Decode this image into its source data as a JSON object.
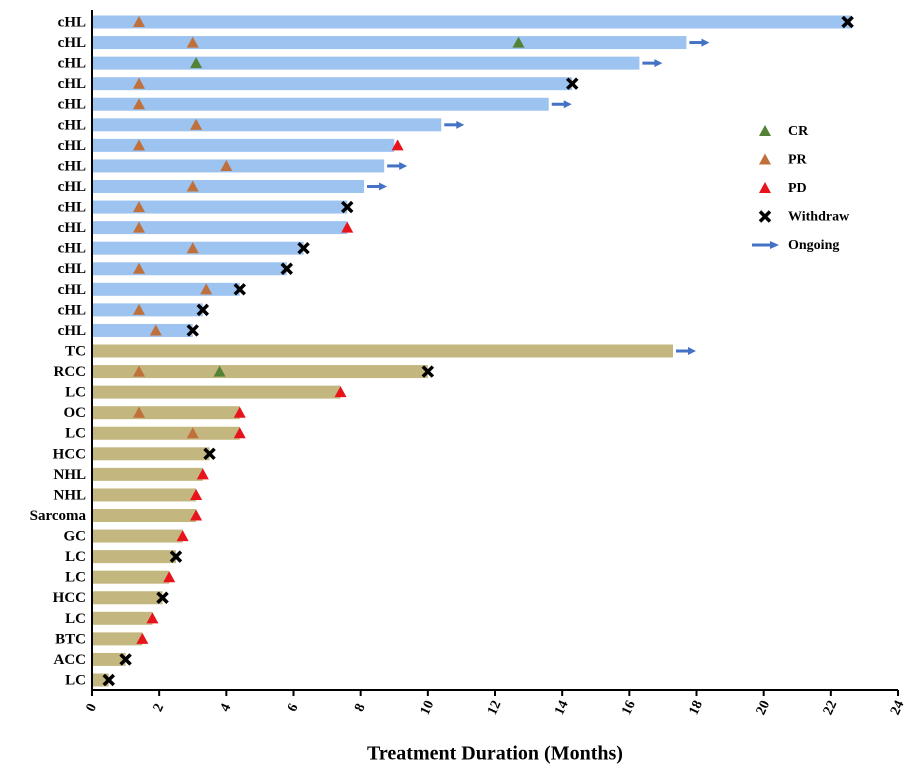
{
  "chart_data": {
    "type": "swimmer",
    "x_label": "Treatment Duration (Months)",
    "xlim": [
      0,
      24
    ],
    "xticks": [
      0,
      2,
      4,
      6,
      8,
      10,
      12,
      14,
      16,
      18,
      20,
      22,
      24
    ],
    "categories": [
      "cHL",
      "cHL",
      "cHL",
      "cHL",
      "cHL",
      "cHL",
      "cHL",
      "cHL",
      "cHL",
      "cHL",
      "cHL",
      "cHL",
      "cHL",
      "cHL",
      "cHL",
      "cHL",
      "TC",
      "RCC",
      "LC",
      "OC",
      "LC",
      "HCC",
      "NHL",
      "NHL",
      "Sarcoma",
      "GC",
      "LC",
      "LC",
      "HCC",
      "LC",
      "BTC",
      "ACC",
      "LC"
    ],
    "values": [
      22.6,
      17.7,
      16.3,
      14.3,
      13.6,
      10.4,
      9.0,
      8.7,
      8.1,
      7.6,
      7.6,
      6.3,
      5.8,
      4.4,
      3.3,
      3.0,
      17.3,
      10.0,
      7.4,
      4.4,
      4.4,
      3.5,
      3.3,
      3.1,
      3.1,
      2.7,
      2.5,
      2.3,
      2.1,
      1.8,
      1.5,
      1.0,
      0.5
    ],
    "bar_colors": [
      "#9dc3f0",
      "#9dc3f0",
      "#9dc3f0",
      "#9dc3f0",
      "#9dc3f0",
      "#9dc3f0",
      "#9dc3f0",
      "#9dc3f0",
      "#9dc3f0",
      "#9dc3f0",
      "#9dc3f0",
      "#9dc3f0",
      "#9dc3f0",
      "#9dc3f0",
      "#9dc3f0",
      "#9dc3f0",
      "#c4b67f",
      "#c4b67f",
      "#c4b67f",
      "#c4b67f",
      "#c4b67f",
      "#c4b67f",
      "#c4b67f",
      "#c4b67f",
      "#c4b67f",
      "#c4b67f",
      "#c4b67f",
      "#c4b67f",
      "#c4b67f",
      "#c4b67f",
      "#c4b67f",
      "#c4b67f",
      "#c4b67f"
    ],
    "series": [
      {
        "name": "CR",
        "color": "#548235",
        "marker": "triangle",
        "values": [
          null,
          12.7,
          3.1,
          null,
          null,
          null,
          null,
          null,
          null,
          null,
          null,
          null,
          null,
          null,
          null,
          null,
          null,
          3.8,
          null,
          null,
          null,
          null,
          null,
          null,
          null,
          null,
          null,
          null,
          null,
          null,
          null,
          null,
          null
        ]
      },
      {
        "name": "PR",
        "color": "#c0703a",
        "marker": "triangle",
        "values": [
          1.4,
          3.0,
          null,
          1.4,
          1.4,
          3.1,
          1.4,
          4.0,
          3.0,
          1.4,
          1.4,
          3.0,
          1.4,
          3.4,
          1.4,
          1.9,
          null,
          1.4,
          null,
          1.4,
          3.0,
          null,
          null,
          null,
          null,
          null,
          null,
          null,
          null,
          null,
          null,
          null,
          null
        ]
      },
      {
        "name": "PD",
        "color": "#e8141c",
        "marker": "triangle",
        "values": [
          null,
          null,
          null,
          null,
          null,
          null,
          9.1,
          null,
          null,
          null,
          7.6,
          null,
          null,
          null,
          null,
          null,
          null,
          null,
          7.4,
          4.4,
          4.4,
          null,
          3.3,
          3.1,
          3.1,
          2.7,
          null,
          2.3,
          null,
          1.8,
          1.5,
          null,
          null
        ]
      },
      {
        "name": "Withdraw",
        "color": "#000000",
        "marker": "x",
        "values": [
          22.5,
          null,
          null,
          14.3,
          null,
          null,
          null,
          null,
          null,
          7.6,
          null,
          6.3,
          5.8,
          4.4,
          3.3,
          3.0,
          null,
          10.0,
          null,
          null,
          null,
          3.5,
          null,
          null,
          null,
          null,
          2.5,
          null,
          2.1,
          null,
          null,
          1.0,
          0.5
        ]
      },
      {
        "name": "Ongoing",
        "color": "#4472c4",
        "marker": "arrow",
        "values": [
          null,
          17.7,
          16.3,
          null,
          13.6,
          10.4,
          null,
          8.7,
          8.1,
          null,
          null,
          null,
          null,
          null,
          null,
          null,
          17.3,
          null,
          null,
          null,
          null,
          null,
          null,
          null,
          null,
          null,
          null,
          null,
          null,
          null,
          null,
          null,
          null
        ]
      }
    ]
  }
}
